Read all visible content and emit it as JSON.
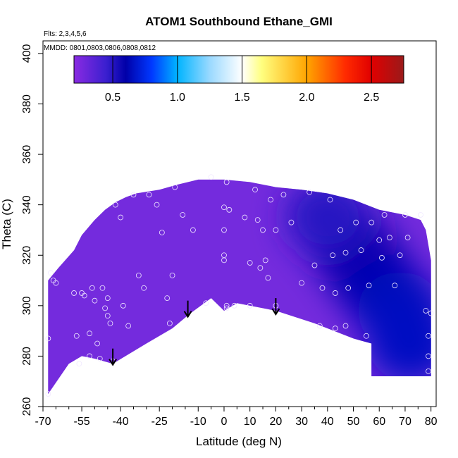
{
  "chart_data": {
    "type": "heatmap",
    "title": "ATOM1 Southbound Ethane_GMI",
    "flights_label": "Flts: 2,3,4,5,6",
    "dates_label": "MMDD: 0801,0803,0806,0808,0812",
    "xlabel": "Latitude (deg N)",
    "ylabel": "Theta (C)",
    "xlim": [
      -70,
      82
    ],
    "ylim": [
      260,
      405
    ],
    "x_ticks": [
      -70,
      -55,
      -40,
      -25,
      -10,
      0,
      10,
      20,
      30,
      40,
      50,
      60,
      70,
      80
    ],
    "x_minor_ticks": [
      -65,
      -60,
      -50,
      -45,
      -35,
      -30,
      -20,
      -15,
      -5,
      5,
      15,
      25,
      35,
      45,
      55,
      65,
      75
    ],
    "y_ticks": [
      260,
      280,
      300,
      320,
      340,
      360,
      380,
      400
    ],
    "colorbar": {
      "range": [
        0.2,
        2.75
      ],
      "ticks": [
        0.5,
        1.0,
        1.5,
        2.0,
        2.5
      ],
      "tick_labels": [
        "0.5",
        "1.0",
        "1.5",
        "2.0",
        "2.5"
      ],
      "stops": [
        {
          "v": 0.2,
          "c": "#8a2be2"
        },
        {
          "v": 0.45,
          "c": "#3a1fcf"
        },
        {
          "v": 0.6,
          "c": "#0000a8"
        },
        {
          "v": 0.8,
          "c": "#0038ff"
        },
        {
          "v": 1.0,
          "c": "#00b4ff"
        },
        {
          "v": 1.25,
          "c": "#9ad9ff"
        },
        {
          "v": 1.5,
          "c": "#ffffff"
        },
        {
          "v": 1.65,
          "c": "#ffff80"
        },
        {
          "v": 2.0,
          "c": "#ffa500"
        },
        {
          "v": 2.3,
          "c": "#ff2a00"
        },
        {
          "v": 2.5,
          "c": "#e00000"
        },
        {
          "v": 2.75,
          "c": "#9a1a1a"
        }
      ]
    },
    "surface": [
      [
        -68,
        265
      ],
      [
        -60,
        277
      ],
      [
        -55,
        280
      ],
      [
        -50,
        279
      ],
      [
        -43,
        277
      ],
      [
        -30,
        285
      ],
      [
        -20,
        291
      ],
      [
        -13,
        297
      ],
      [
        -5,
        303
      ],
      [
        0,
        298
      ],
      [
        5,
        301
      ],
      [
        20,
        298
      ],
      [
        35,
        293
      ],
      [
        50,
        287
      ],
      [
        57,
        285
      ]
    ],
    "top_edge": [
      [
        -68,
        310
      ],
      [
        -64,
        315
      ],
      [
        -58,
        322
      ],
      [
        -55,
        328
      ],
      [
        -50,
        334
      ],
      [
        -46,
        338
      ],
      [
        -42,
        341
      ],
      [
        -38,
        343
      ],
      [
        -34,
        344.5
      ],
      [
        -25,
        346
      ],
      [
        -18,
        348
      ],
      [
        -10,
        350
      ],
      [
        0,
        350
      ],
      [
        10,
        349
      ],
      [
        20,
        347
      ],
      [
        30,
        346
      ],
      [
        40,
        344.5
      ],
      [
        50,
        342
      ],
      [
        60,
        338
      ],
      [
        70,
        336
      ],
      [
        76,
        334
      ],
      [
        78,
        330
      ],
      [
        80,
        318
      ],
      [
        80,
        272
      ]
    ],
    "blue_region": [
      {
        "lat": 48,
        "theta": 325,
        "val": 0.55
      },
      {
        "lat": 55,
        "theta": 315,
        "val": 0.58
      },
      {
        "lat": 62,
        "theta": 305,
        "val": 0.62
      },
      {
        "lat": 68,
        "theta": 298,
        "val": 0.65
      },
      {
        "lat": 72,
        "theta": 285,
        "val": 0.66
      },
      {
        "lat": 40,
        "theta": 335,
        "val": 0.5
      }
    ],
    "arrows": [
      {
        "lat": -43,
        "theta": 283
      },
      {
        "lat": -14,
        "theta": 302
      },
      {
        "lat": 20,
        "theta": 303
      }
    ],
    "points": [
      [
        -68,
        265
      ],
      [
        -68,
        287
      ],
      [
        -67,
        313
      ],
      [
        -66,
        310
      ],
      [
        -65,
        309
      ],
      [
        -58,
        305
      ],
      [
        -57,
        288
      ],
      [
        -56,
        277
      ],
      [
        -55,
        305
      ],
      [
        -54,
        304
      ],
      [
        -52,
        280
      ],
      [
        -52,
        289
      ],
      [
        -51,
        307
      ],
      [
        -50,
        302
      ],
      [
        -49,
        285
      ],
      [
        -48,
        279
      ],
      [
        -47,
        307
      ],
      [
        -46,
        299
      ],
      [
        -45,
        303
      ],
      [
        -45,
        296
      ],
      [
        -44,
        293
      ],
      [
        -43,
        278
      ],
      [
        -42,
        340
      ],
      [
        -40,
        335
      ],
      [
        -39,
        300
      ],
      [
        -37,
        292
      ],
      [
        -35,
        344
      ],
      [
        -33,
        312
      ],
      [
        -31,
        307
      ],
      [
        -29,
        344
      ],
      [
        -26,
        340
      ],
      [
        -24,
        329
      ],
      [
        -22,
        303
      ],
      [
        -21,
        293
      ],
      [
        -20,
        312
      ],
      [
        -19,
        347
      ],
      [
        -16,
        336
      ],
      [
        -12,
        330
      ],
      [
        -7,
        301
      ],
      [
        -5,
        351
      ],
      [
        0,
        339
      ],
      [
        1,
        349
      ],
      [
        0,
        330
      ],
      [
        0,
        320
      ],
      [
        0,
        318
      ],
      [
        1,
        300
      ],
      [
        1,
        299
      ],
      [
        2,
        338
      ],
      [
        4,
        300
      ],
      [
        8,
        335
      ],
      [
        10,
        300
      ],
      [
        10,
        317
      ],
      [
        12,
        346
      ],
      [
        13,
        334
      ],
      [
        14,
        315
      ],
      [
        15,
        330
      ],
      [
        16,
        318
      ],
      [
        17,
        311
      ],
      [
        18,
        342
      ],
      [
        20,
        300
      ],
      [
        20,
        330
      ],
      [
        23,
        344
      ],
      [
        26,
        333
      ],
      [
        30,
        309
      ],
      [
        33,
        345
      ],
      [
        35,
        316
      ],
      [
        37,
        292
      ],
      [
        38,
        307
      ],
      [
        41,
        342
      ],
      [
        42,
        320
      ],
      [
        43,
        305
      ],
      [
        43,
        291
      ],
      [
        45,
        330
      ],
      [
        47,
        321
      ],
      [
        47,
        292
      ],
      [
        48,
        307
      ],
      [
        51,
        333
      ],
      [
        53,
        322
      ],
      [
        55,
        288
      ],
      [
        56,
        308
      ],
      [
        57,
        333
      ],
      [
        60,
        326
      ],
      [
        61,
        319
      ],
      [
        62,
        336
      ],
      [
        64,
        327
      ],
      [
        66,
        308
      ],
      [
        68,
        320
      ],
      [
        70,
        336
      ],
      [
        71,
        327
      ],
      [
        76,
        336
      ],
      [
        78,
        298
      ],
      [
        79,
        288
      ],
      [
        79,
        280
      ],
      [
        79,
        274
      ],
      [
        80,
        297
      ]
    ]
  }
}
